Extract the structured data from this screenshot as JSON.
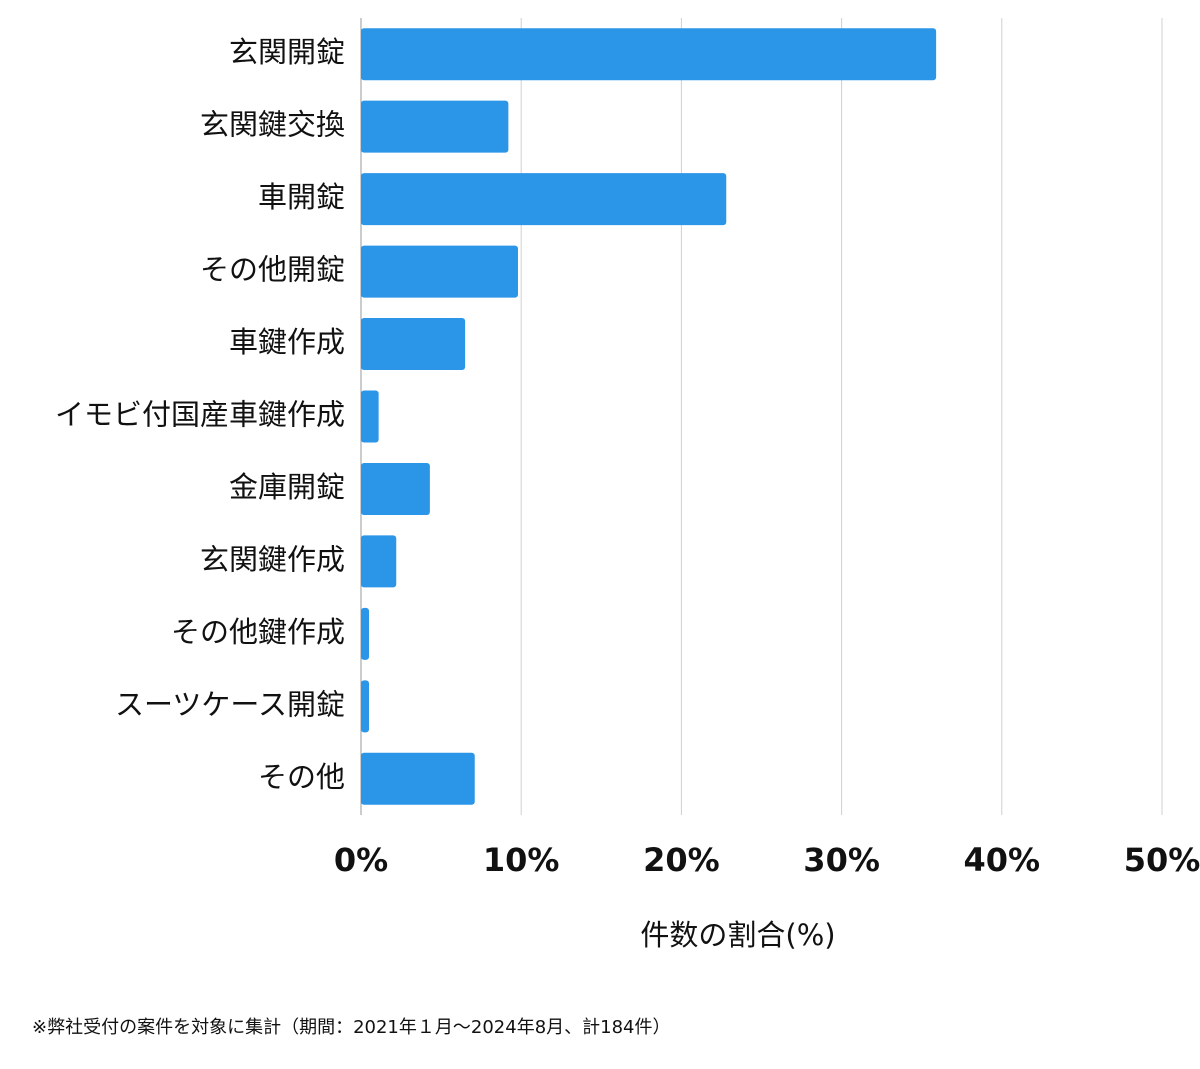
{
  "chart_data": {
    "type": "bar",
    "orientation": "horizontal",
    "categories": [
      "玄関開錠",
      "玄関鍵交換",
      "車開錠",
      "その他開錠",
      "車鍵作成",
      "イモビ付国産車鍵作成",
      "金庫開錠",
      "玄関鍵作成",
      "その他鍵作成",
      "スーツケース開錠",
      "その他"
    ],
    "values": [
      35.9,
      9.2,
      22.8,
      9.8,
      6.5,
      1.1,
      4.3,
      2.2,
      0.5,
      0.5,
      7.1
    ],
    "color": "#2b95e8",
    "xlim": [
      0,
      50
    ],
    "xticks": [
      {
        "value": 0,
        "label": "0%"
      },
      {
        "value": 10,
        "label": "10%"
      },
      {
        "value": 20,
        "label": "20%"
      },
      {
        "value": 30,
        "label": "30%"
      },
      {
        "value": 40,
        "label": "40%"
      },
      {
        "value": 50,
        "label": "50%"
      }
    ],
    "x_label": "件数の割合(%)",
    "grid": true,
    "footnote": "※弊社受付の案件を対象に集計（期間：2021年１月〜2024年8月、計184件）"
  }
}
